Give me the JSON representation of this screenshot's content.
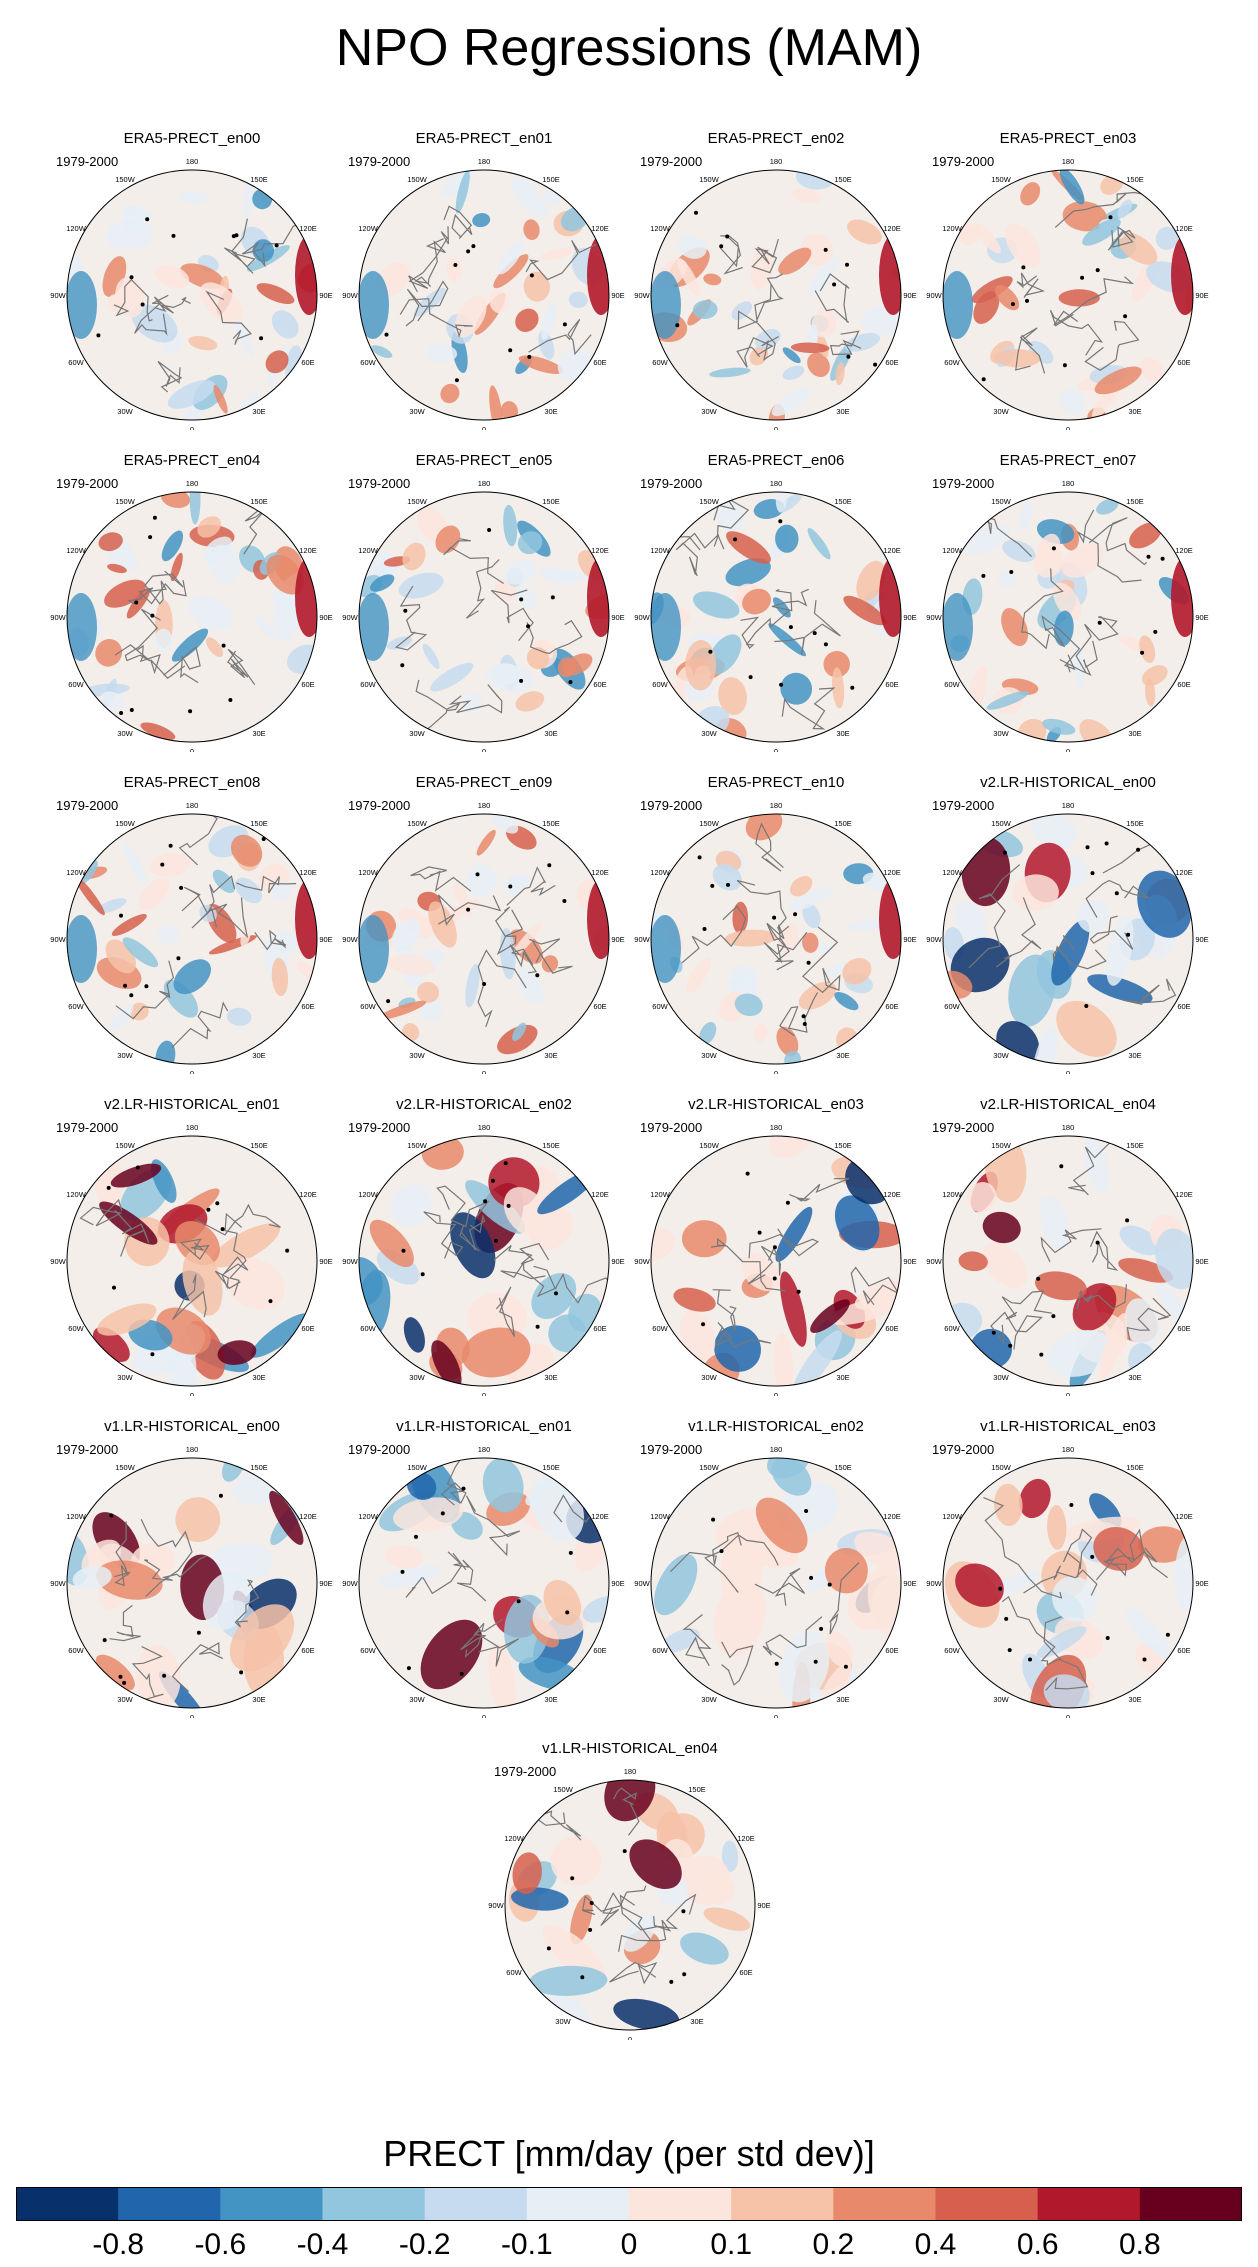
{
  "figure": {
    "title": "NPO Regressions (MAM)",
    "period": "1979-2000",
    "colorbar_title": "PRECT [mm/day (per std dev)]",
    "colorbar_ticks": [
      "-0.8",
      "-0.6",
      "-0.4",
      "-0.2",
      "-0.1",
      "0",
      "0.1",
      "0.2",
      "0.4",
      "0.6",
      "0.8"
    ],
    "colorbar_colors": [
      "#08306b",
      "#2166ac",
      "#4393c3",
      "#92c5de",
      "#c6dbef",
      "#e6eef6",
      "#fbe5dd",
      "#f6c2a8",
      "#e8896b",
      "#d6604d",
      "#b2182b",
      "#67001f"
    ]
  },
  "longitude_labels": [
    "180",
    "150E",
    "120E",
    "90E",
    "60E",
    "30E",
    "0",
    "30W",
    "60W",
    "90W",
    "120W",
    "150W"
  ],
  "panels": [
    {
      "title": "ERA5-PRECT_en00",
      "type": "era5"
    },
    {
      "title": "ERA5-PRECT_en01",
      "type": "era5"
    },
    {
      "title": "ERA5-PRECT_en02",
      "type": "era5"
    },
    {
      "title": "ERA5-PRECT_en03",
      "type": "era5"
    },
    {
      "title": "ERA5-PRECT_en04",
      "type": "era5"
    },
    {
      "title": "ERA5-PRECT_en05",
      "type": "era5"
    },
    {
      "title": "ERA5-PRECT_en06",
      "type": "era5"
    },
    {
      "title": "ERA5-PRECT_en07",
      "type": "era5"
    },
    {
      "title": "ERA5-PRECT_en08",
      "type": "era5"
    },
    {
      "title": "ERA5-PRECT_en09",
      "type": "era5"
    },
    {
      "title": "ERA5-PRECT_en10",
      "type": "era5"
    },
    {
      "title": "v2.LR-HISTORICAL_en00",
      "type": "model"
    },
    {
      "title": "v2.LR-HISTORICAL_en01",
      "type": "model"
    },
    {
      "title": "v2.LR-HISTORICAL_en02",
      "type": "model"
    },
    {
      "title": "v2.LR-HISTORICAL_en03",
      "type": "model"
    },
    {
      "title": "v2.LR-HISTORICAL_en04",
      "type": "model"
    },
    {
      "title": "v1.LR-HISTORICAL_en00",
      "type": "model"
    },
    {
      "title": "v1.LR-HISTORICAL_en01",
      "type": "model"
    },
    {
      "title": "v1.LR-HISTORICAL_en02",
      "type": "model"
    },
    {
      "title": "v1.LR-HISTORICAL_en03",
      "type": "model"
    },
    {
      "title": "v1.LR-HISTORICAL_en04",
      "type": "model"
    }
  ]
}
